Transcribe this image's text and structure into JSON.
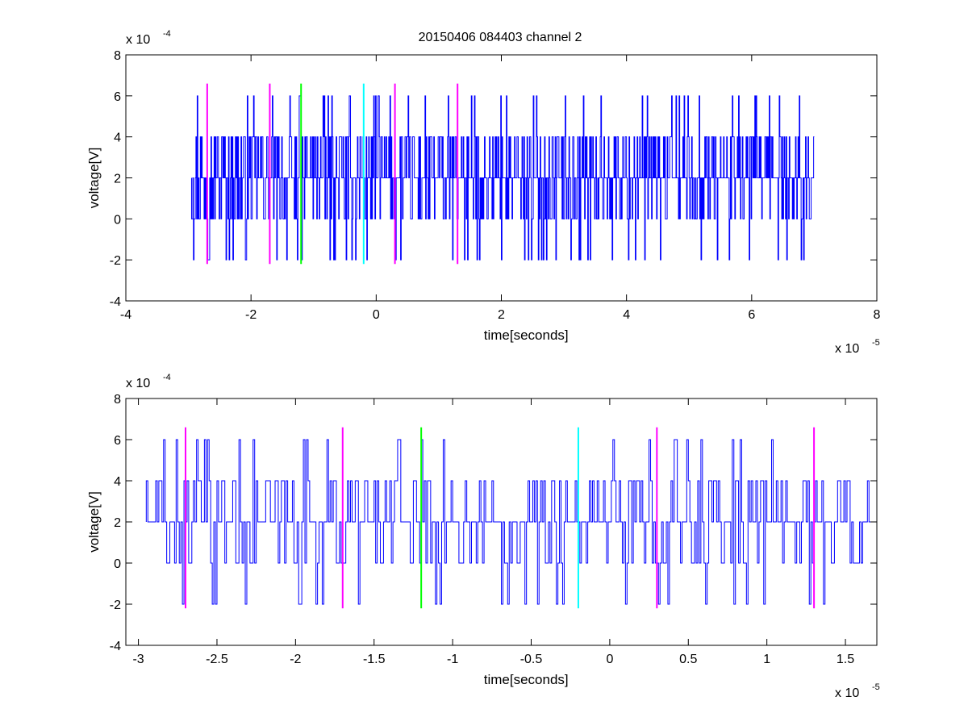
{
  "figure": {
    "title": "20150406 084403 channel 2"
  },
  "chart_data": [
    {
      "type": "line",
      "title": "20150406 084403 channel 2",
      "xlabel": "time[seconds]",
      "ylabel": "voltage[V]",
      "x_exponent_label": "x 10",
      "x_exponent": "-5",
      "y_exponent_label": "x 10",
      "y_exponent": "-4",
      "xlim": [
        -4,
        8
      ],
      "ylim": [
        -4,
        8
      ],
      "x_ticks": [
        -4,
        -2,
        0,
        2,
        4,
        6,
        8
      ],
      "y_ticks": [
        -4,
        -2,
        0,
        2,
        4,
        6,
        8
      ],
      "x_tick_labels": [
        "-4",
        "-2",
        "0",
        "2",
        "4",
        "6",
        "8"
      ],
      "y_tick_labels": [
        "-4",
        "-2",
        "0",
        "2",
        "4",
        "6",
        "8"
      ],
      "grid": false,
      "trace": {
        "color": "#0000ff",
        "x_start": -2.95,
        "x_end": 7.0,
        "samples": 996,
        "levels": [
          -2,
          0,
          2,
          4,
          6
        ],
        "notable_peaks": [
          {
            "x": -2.85,
            "y": 6
          },
          {
            "x": -1.2,
            "y": 6
          },
          {
            "x": 0.05,
            "y": 6
          },
          {
            "x": 2.0,
            "y": 6
          },
          {
            "x": 4.8,
            "y": 6
          },
          {
            "x": 5.8,
            "y": 6
          },
          {
            "x": 6.45,
            "y": 6
          }
        ]
      },
      "markers": [
        {
          "x": -2.7,
          "color": "#ff00ff"
        },
        {
          "x": -1.7,
          "color": "#ff00ff"
        },
        {
          "x": -1.2,
          "color": "#00ff00"
        },
        {
          "x": -0.2,
          "color": "#00ffff"
        },
        {
          "x": 0.3,
          "color": "#ff00ff"
        },
        {
          "x": 1.3,
          "color": "#ff00ff"
        }
      ],
      "marker_range": [
        -2.2,
        6.6
      ]
    },
    {
      "type": "line",
      "title": "",
      "xlabel": "time[seconds]",
      "ylabel": "voltage[V]",
      "x_exponent_label": "x 10",
      "x_exponent": "-5",
      "y_exponent_label": "x 10",
      "y_exponent": "-4",
      "xlim": [
        -3.08,
        1.7
      ],
      "ylim": [
        -4,
        8
      ],
      "x_ticks": [
        -3,
        -2.5,
        -2,
        -1.5,
        -1,
        -0.5,
        0,
        0.5,
        1,
        1.5
      ],
      "y_ticks": [
        -4,
        -2,
        0,
        2,
        4,
        6,
        8
      ],
      "x_tick_labels": [
        "-3",
        "-2.5",
        "-2",
        "-1.5",
        "-1",
        "-0.5",
        "0",
        "0.5",
        "1",
        "1.5"
      ],
      "y_tick_labels": [
        "-4",
        "-2",
        "0",
        "2",
        "4",
        "6",
        "8"
      ],
      "grid": false,
      "trace": {
        "color": "#0000ff",
        "x_start": -2.95,
        "x_end": 1.7,
        "samples": 466,
        "levels": [
          -2,
          0,
          2,
          4,
          6
        ],
        "notable_peaks": [
          {
            "x": -2.83,
            "y": 6
          },
          {
            "x": -1.19,
            "y": 6
          },
          {
            "x": 0.03,
            "y": 6
          },
          {
            "x": 0.26,
            "y": 6
          }
        ]
      },
      "markers": [
        {
          "x": -2.7,
          "color": "#ff00ff"
        },
        {
          "x": -1.7,
          "color": "#ff00ff"
        },
        {
          "x": -1.2,
          "color": "#00ff00"
        },
        {
          "x": -0.2,
          "color": "#00ffff"
        },
        {
          "x": 0.3,
          "color": "#ff00ff"
        },
        {
          "x": 1.3,
          "color": "#ff00ff"
        }
      ],
      "marker_range": [
        -2.2,
        6.6
      ]
    }
  ]
}
